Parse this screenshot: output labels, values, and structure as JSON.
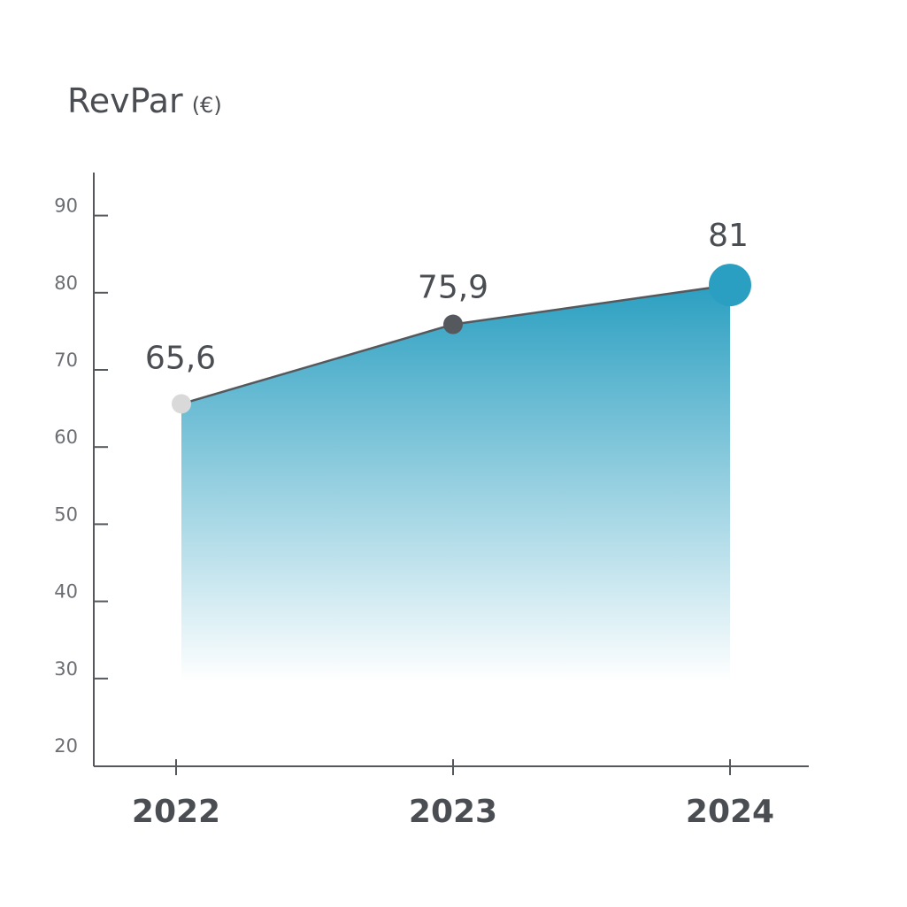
{
  "chart_data": {
    "type": "area",
    "title": "RevPar",
    "unit": "(€)",
    "categories": [
      "2022",
      "2023",
      "2024"
    ],
    "values": [
      65.6,
      75.9,
      81
    ],
    "data_labels": [
      "65,6",
      "75,9",
      "81"
    ],
    "ylim": [
      20,
      90
    ],
    "yticks": [
      20,
      30,
      40,
      50,
      60,
      70,
      80,
      90
    ],
    "grid": false,
    "legend": "none",
    "colors": {
      "axis": "#55585c",
      "line": "#55585c",
      "fill_top": "#2b9fc1",
      "fill_bottom": "#ffffff",
      "marker_2022": "#d9d9d9",
      "marker_2023": "#55585c",
      "marker_2024": "#2b9fc1"
    }
  }
}
